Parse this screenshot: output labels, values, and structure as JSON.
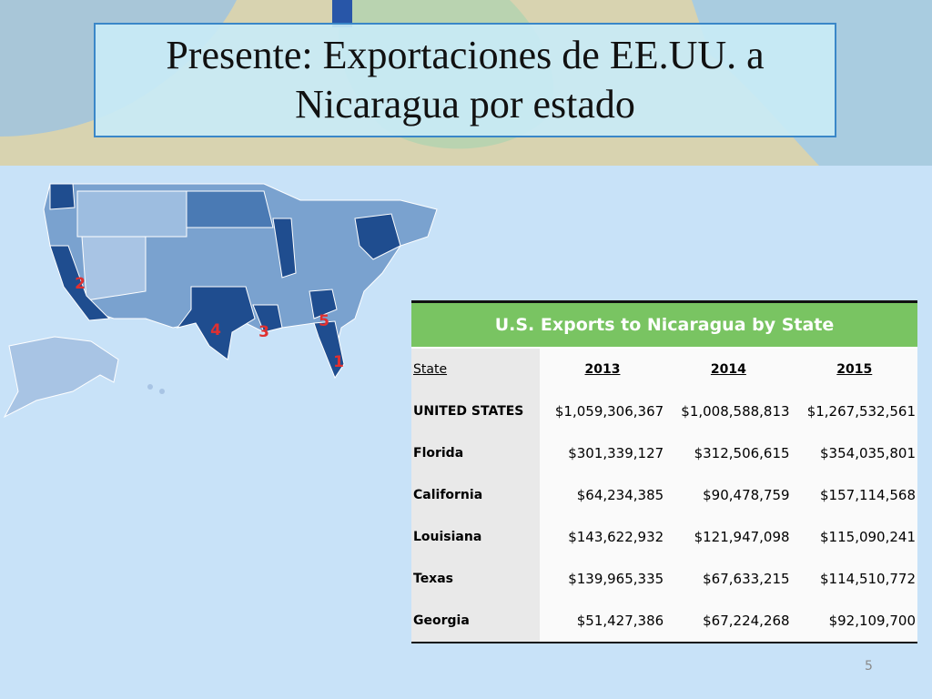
{
  "title": "Presente: Exportaciones de EE.UU. a Nicaragua por estado",
  "map": {
    "labels": [
      "1",
      "2",
      "3",
      "4",
      "5"
    ]
  },
  "table": {
    "caption": "U.S. Exports to Nicaragua by State",
    "header": [
      "State",
      "2013",
      "2014",
      "2015"
    ],
    "rows": [
      [
        "UNITED STATES",
        "$1,059,306,367",
        "$1,008,588,813",
        "$1,267,532,561"
      ],
      [
        "Florida",
        "$301,339,127",
        "$312,506,615",
        "$354,035,801"
      ],
      [
        "California",
        "$64,234,385",
        "$90,478,759",
        "$157,114,568"
      ],
      [
        "Louisiana",
        "$143,622,932",
        "$121,947,098",
        "$115,090,241"
      ],
      [
        "Texas",
        "$139,965,335",
        "$67,633,215",
        "$114,510,772"
      ],
      [
        "Georgia",
        "$51,427,386",
        "$67,224,268",
        "$92,109,700"
      ]
    ]
  },
  "page_number": "5"
}
